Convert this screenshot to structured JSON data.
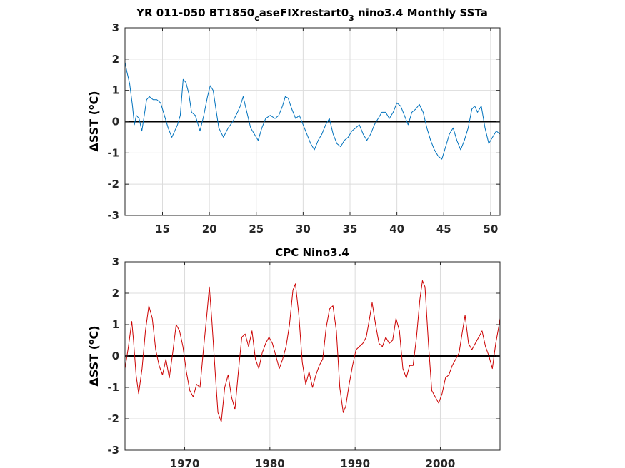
{
  "chart_data": [
    {
      "type": "line",
      "title": "YR 011-050 BT1850_caseFIXrestart0_3 nino3.4 Monthly SSTa",
      "title_parts": {
        "pre": "YR 011-050 BT1850",
        "sub1": "c",
        "mid": "aseFIXrestart0",
        "sub2": "3",
        "post": " nino3.4 Monthly SSTa"
      },
      "ylabel": "ΔSST (°C)",
      "ylabel_parts": {
        "pre": "ΔSST (",
        "sup": "o",
        "post": "C)"
      },
      "xlim": [
        11,
        51
      ],
      "ylim": [
        -3,
        3
      ],
      "xticks": [
        15,
        20,
        25,
        30,
        35,
        40,
        45,
        50
      ],
      "yticks": [
        -3,
        -2,
        -1,
        0,
        1,
        2,
        3
      ],
      "grid": true,
      "zero_line": true,
      "series": [
        {
          "color": "#0072bd",
          "x": [
            11.0,
            11.2,
            11.5,
            11.8,
            12.0,
            12.2,
            12.5,
            12.8,
            13.0,
            13.3,
            13.6,
            14.0,
            14.4,
            14.8,
            15.2,
            15.6,
            16.0,
            16.3,
            16.6,
            16.9,
            17.2,
            17.5,
            17.8,
            18.1,
            18.5,
            19.0,
            19.4,
            19.8,
            20.1,
            20.4,
            20.7,
            21.0,
            21.5,
            22.0,
            22.5,
            23.0,
            23.3,
            23.6,
            24.0,
            24.4,
            24.8,
            25.2,
            25.6,
            26.0,
            26.5,
            27.0,
            27.4,
            27.8,
            28.1,
            28.4,
            28.8,
            29.2,
            29.6,
            30.0,
            30.4,
            30.8,
            31.2,
            31.6,
            32.0,
            32.4,
            32.8,
            33.2,
            33.6,
            34.0,
            34.4,
            34.8,
            35.2,
            35.6,
            36.0,
            36.4,
            36.8,
            37.2,
            37.6,
            38.0,
            38.4,
            38.8,
            39.2,
            39.6,
            40.0,
            40.4,
            40.8,
            41.2,
            41.6,
            42.0,
            42.4,
            42.8,
            43.2,
            43.6,
            44.0,
            44.4,
            44.8,
            45.2,
            45.6,
            46.0,
            46.4,
            46.8,
            47.2,
            47.6,
            48.0,
            48.3,
            48.6,
            49.0,
            49.4,
            49.8,
            50.2,
            50.6,
            51.0
          ],
          "y": [
            1.9,
            1.6,
            1.2,
            0.5,
            -0.1,
            0.2,
            0.1,
            -0.3,
            0.1,
            0.7,
            0.8,
            0.7,
            0.7,
            0.6,
            0.2,
            -0.2,
            -0.5,
            -0.3,
            -0.1,
            0.2,
            1.35,
            1.25,
            0.9,
            0.3,
            0.2,
            -0.3,
            0.2,
            0.8,
            1.15,
            1.0,
            0.4,
            -0.2,
            -0.5,
            -0.2,
            0.0,
            0.3,
            0.5,
            0.8,
            0.3,
            -0.2,
            -0.4,
            -0.6,
            -0.2,
            0.1,
            0.2,
            0.1,
            0.2,
            0.5,
            0.8,
            0.75,
            0.4,
            0.1,
            0.2,
            -0.1,
            -0.4,
            -0.7,
            -0.9,
            -0.6,
            -0.4,
            -0.1,
            0.1,
            -0.4,
            -0.7,
            -0.8,
            -0.6,
            -0.5,
            -0.3,
            -0.2,
            -0.1,
            -0.4,
            -0.6,
            -0.4,
            -0.1,
            0.1,
            0.3,
            0.3,
            0.1,
            0.3,
            0.6,
            0.5,
            0.2,
            -0.1,
            0.3,
            0.4,
            0.55,
            0.3,
            -0.2,
            -0.6,
            -0.9,
            -1.1,
            -1.2,
            -0.8,
            -0.4,
            -0.2,
            -0.6,
            -0.9,
            -0.6,
            -0.2,
            0.4,
            0.5,
            0.3,
            0.5,
            -0.2,
            -0.7,
            -0.5,
            -0.3,
            -0.4
          ]
        }
      ]
    },
    {
      "type": "line",
      "title": "CPC Nino3.4",
      "ylabel": "ΔSST (°C)",
      "ylabel_parts": {
        "pre": "ΔSST (",
        "sup": "o",
        "post": "C)"
      },
      "xlim": [
        1963,
        2007
      ],
      "ylim": [
        -3,
        3
      ],
      "xticks": [
        1970,
        1980,
        1990,
        2000
      ],
      "yticks": [
        -3,
        -2,
        -1,
        0,
        1,
        2,
        3
      ],
      "grid": true,
      "zero_line": true,
      "series": [
        {
          "color": "#cc0000",
          "x": [
            1963.0,
            1963.4,
            1963.8,
            1964.0,
            1964.3,
            1964.6,
            1965.0,
            1965.4,
            1965.8,
            1966.2,
            1966.6,
            1967.0,
            1967.4,
            1967.8,
            1968.2,
            1968.6,
            1969.0,
            1969.4,
            1969.8,
            1970.2,
            1970.6,
            1971.0,
            1971.4,
            1971.8,
            1972.2,
            1972.6,
            1972.9,
            1973.2,
            1973.6,
            1973.9,
            1974.3,
            1974.7,
            1975.1,
            1975.5,
            1975.9,
            1976.3,
            1976.7,
            1977.1,
            1977.5,
            1977.9,
            1978.3,
            1978.7,
            1979.1,
            1979.5,
            1979.9,
            1980.3,
            1980.7,
            1981.1,
            1981.5,
            1981.9,
            1982.3,
            1982.7,
            1983.0,
            1983.4,
            1983.8,
            1984.2,
            1984.6,
            1985.0,
            1985.4,
            1985.8,
            1986.2,
            1986.6,
            1987.0,
            1987.4,
            1987.8,
            1988.2,
            1988.6,
            1988.9,
            1989.3,
            1989.7,
            1990.1,
            1990.5,
            1990.9,
            1991.3,
            1991.7,
            1992.0,
            1992.4,
            1992.8,
            1993.2,
            1993.6,
            1994.0,
            1994.4,
            1994.8,
            1995.2,
            1995.6,
            1996.0,
            1996.4,
            1996.8,
            1997.2,
            1997.6,
            1997.9,
            1998.2,
            1998.6,
            1999.0,
            1999.4,
            1999.8,
            2000.2,
            2000.6,
            2001.0,
            2001.4,
            2001.8,
            2002.2,
            2002.6,
            2002.9,
            2003.3,
            2003.7,
            2004.1,
            2004.5,
            2004.9,
            2005.3,
            2005.7,
            2006.1,
            2006.5,
            2006.9,
            2007.0
          ],
          "y": [
            -0.4,
            0.3,
            1.1,
            0.5,
            -0.6,
            -1.2,
            -0.4,
            0.8,
            1.6,
            1.2,
            0.2,
            -0.3,
            -0.6,
            -0.1,
            -0.7,
            0.1,
            1.0,
            0.8,
            0.3,
            -0.5,
            -1.1,
            -1.3,
            -0.9,
            -1.0,
            0.2,
            1.3,
            2.2,
            1.1,
            -0.6,
            -1.8,
            -2.1,
            -1.0,
            -0.6,
            -1.3,
            -1.7,
            -0.5,
            0.6,
            0.7,
            0.3,
            0.8,
            -0.1,
            -0.4,
            0.1,
            0.4,
            0.6,
            0.4,
            0.0,
            -0.4,
            -0.1,
            0.3,
            1.0,
            2.1,
            2.3,
            1.3,
            -0.2,
            -0.9,
            -0.5,
            -1.0,
            -0.6,
            -0.3,
            -0.1,
            0.9,
            1.5,
            1.6,
            0.8,
            -1.0,
            -1.8,
            -1.6,
            -0.9,
            -0.3,
            0.2,
            0.3,
            0.4,
            0.6,
            1.2,
            1.7,
            1.0,
            0.4,
            0.3,
            0.6,
            0.4,
            0.5,
            1.2,
            0.8,
            -0.4,
            -0.7,
            -0.3,
            -0.3,
            0.6,
            1.8,
            2.4,
            2.2,
            0.4,
            -1.1,
            -1.3,
            -1.5,
            -1.2,
            -0.7,
            -0.6,
            -0.3,
            -0.1,
            0.1,
            0.8,
            1.3,
            0.4,
            0.2,
            0.4,
            0.6,
            0.8,
            0.3,
            0.0,
            -0.4,
            0.4,
            1.0,
            1.2
          ]
        }
      ]
    }
  ]
}
